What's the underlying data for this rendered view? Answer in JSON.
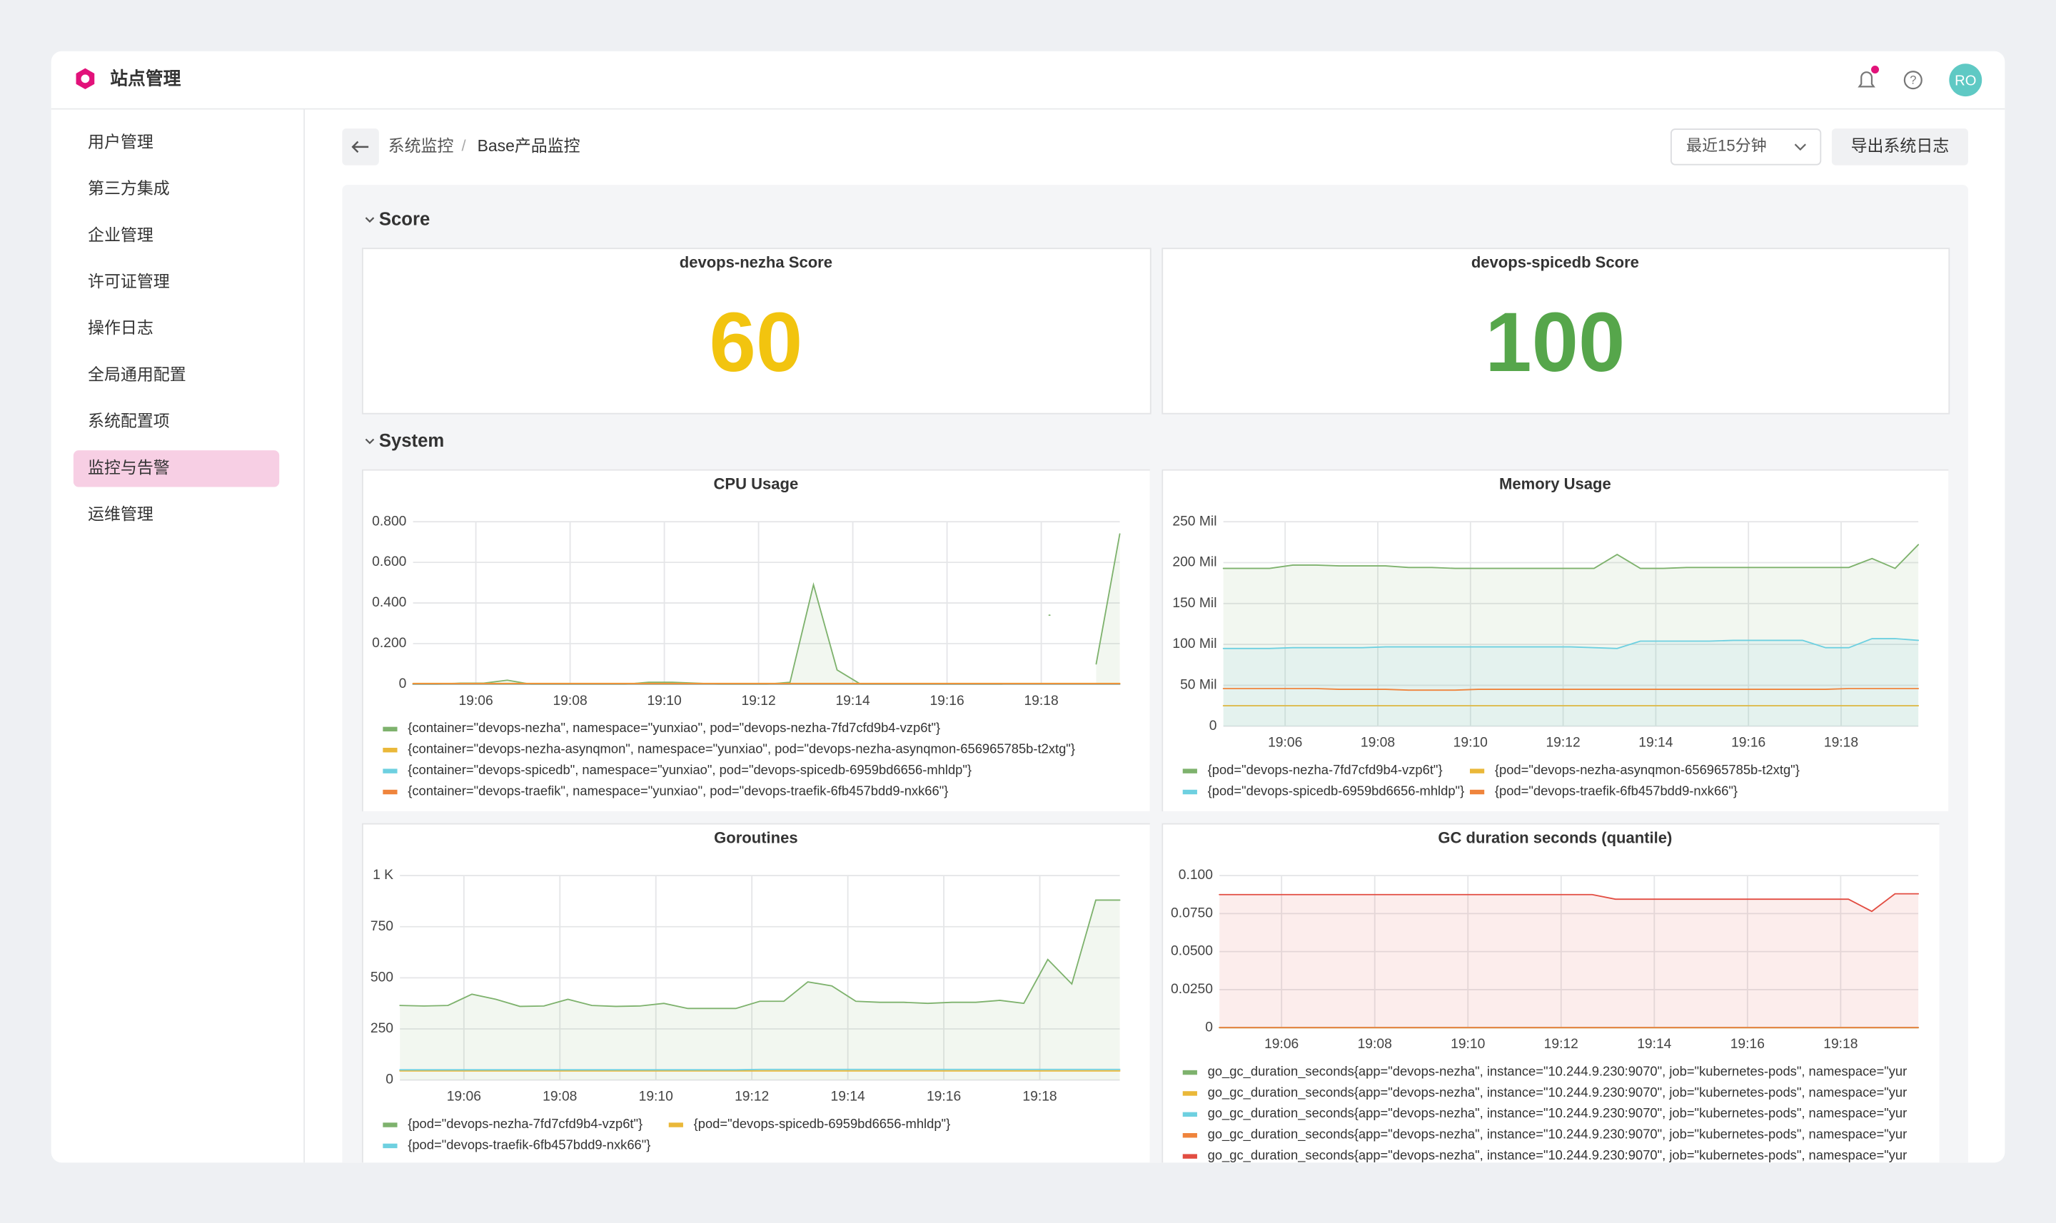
{
  "header": {
    "title": "站点管理",
    "avatar": "RO"
  },
  "sidebar": {
    "items": [
      "用户管理",
      "第三方集成",
      "企业管理",
      "许可证管理",
      "操作日志",
      "全局通用配置",
      "系统配置项",
      "监控与告警",
      "运维管理"
    ],
    "active": 7
  },
  "breadcrumb": {
    "items": [
      "系统监控",
      "Base产品监控"
    ],
    "separator": "/"
  },
  "toolbar": {
    "time_range": "最近15分钟",
    "export": "导出系统日志"
  },
  "sections": [
    "Score",
    "System"
  ],
  "scores": [
    {
      "title": "devops-nezha Score",
      "value": 60,
      "color": "#f2c40f"
    },
    {
      "title": "devops-spicedb Score",
      "value": 100,
      "color": "#56a64b"
    }
  ],
  "time_axis": {
    "x": [
      "19:04:40",
      "19:05:10",
      "19:05:40",
      "19:06:10",
      "19:06:40",
      "19:07:10",
      "19:07:40",
      "19:08:10",
      "19:08:40",
      "19:09:10",
      "19:09:40",
      "19:10:10",
      "19:10:40",
      "19:11:10",
      "19:11:40",
      "19:12:10",
      "19:12:40",
      "19:13:10",
      "19:13:40",
      "19:14:10",
      "19:14:40",
      "19:15:10",
      "19:15:40",
      "19:16:10",
      "19:16:40",
      "19:17:10",
      "19:17:40",
      "19:18:10",
      "19:18:40",
      "19:19:10",
      "19:19:40"
    ],
    "xlim": [
      "19:04:40",
      "19:19:40"
    ],
    "xticks": [
      "19:06",
      "19:08",
      "19:10",
      "19:12",
      "19:14",
      "19:16",
      "19:18"
    ]
  },
  "charts": [
    {
      "type": "line",
      "title": "CPU Usage",
      "ylim": [
        0,
        0.8
      ],
      "yticks": [
        0,
        {
          "value": 0.2,
          "label": "0.200"
        },
        {
          "value": 0.4,
          "label": "0.400"
        },
        {
          "value": 0.6,
          "label": "0.600"
        },
        {
          "value": 0.8,
          "label": "0.800"
        }
      ],
      "series": [
        {
          "name": "{container=\"devops-nezha\", namespace=\"yunxiao\", pod=\"devops-nezha-7fd7cfd9b4-vzp6t\"}",
          "color": "#7eb26d",
          "fill": true,
          "values": [
            0,
            0,
            0.005,
            0.005,
            0.02,
            0,
            0,
            0,
            0,
            0,
            0.01,
            0.01,
            0.005,
            0,
            0,
            0,
            0.01,
            0.49,
            0.07,
            0,
            0,
            0,
            0,
            0,
            0,
            0,
            null,
            0.34,
            null,
            0.1,
            0.74
          ]
        },
        {
          "name": "{container=\"devops-nezha-asynqmon\", namespace=\"yunxiao\", pod=\"devops-nezha-asynqmon-656965785b-t2xtg\"}",
          "color": "#eab839",
          "values": [
            0.004,
            0.004,
            0.004,
            0.004,
            0.004,
            0.004,
            0.004,
            0.004,
            0.004,
            0.004,
            0.004,
            0.004,
            0.004,
            0.004,
            0.004,
            0.004,
            0.004,
            0.004,
            0.004,
            0.004,
            0.004,
            0.004,
            0.004,
            0.004,
            0.004,
            0.004,
            0.004,
            0.004,
            0.004,
            0.004,
            0.004
          ]
        },
        {
          "name": "{container=\"devops-spicedb\", namespace=\"yunxiao\", pod=\"devops-spicedb-6959bd6656-mhldp\"}",
          "color": "#6ed0e0",
          "values": [
            0,
            0,
            0,
            0,
            0,
            0,
            0,
            0,
            0,
            0,
            0,
            0,
            0,
            0,
            0,
            0,
            0,
            0,
            0,
            0,
            0,
            0,
            0,
            0,
            0,
            0,
            0,
            0,
            0,
            0,
            0
          ]
        },
        {
          "name": "{container=\"devops-traefik\", namespace=\"yunxiao\", pod=\"devops-traefik-6fb457bdd9-nxk66\"}",
          "color": "#ef843c",
          "values": [
            0.002,
            0.002,
            0.002,
            0.002,
            0.002,
            0.002,
            0.002,
            0.002,
            0.002,
            0.002,
            0.002,
            0.002,
            0.002,
            0.002,
            0.002,
            0.002,
            0.002,
            0.002,
            0.002,
            0.002,
            0.002,
            0.002,
            0.002,
            0.002,
            0.002,
            0.002,
            0.002,
            0.002,
            0.002,
            0.002,
            0.002
          ]
        }
      ]
    },
    {
      "type": "line",
      "title": "Memory Usage",
      "ylim": [
        0,
        250
      ],
      "yticks": [
        0,
        {
          "value": 50,
          "label": "50 Mil"
        },
        {
          "value": 100,
          "label": "100 Mil"
        },
        {
          "value": 150,
          "label": "150 Mil"
        },
        {
          "value": 200,
          "label": "200 Mil"
        },
        {
          "value": 250,
          "label": "250 Mil"
        }
      ],
      "series": [
        {
          "name": "{pod=\"devops-nezha-7fd7cfd9b4-vzp6t\"}",
          "color": "#7eb26d",
          "fill": true,
          "values": [
            193,
            193,
            193,
            197,
            197,
            196,
            196,
            196,
            194,
            194,
            193,
            193,
            193,
            193,
            193,
            193,
            193,
            210,
            193,
            193,
            194,
            194,
            194,
            194,
            194,
            194,
            194,
            194,
            205,
            193,
            222
          ]
        },
        {
          "name": "{pod=\"devops-nezha-asynqmon-656965785b-t2xtg\"}",
          "color": "#eab839",
          "values": [
            25,
            25,
            25,
            25,
            25,
            25,
            25,
            25,
            25,
            25,
            25,
            25,
            25,
            25,
            25,
            25,
            25,
            25,
            25,
            25,
            25,
            25,
            25,
            25,
            25,
            25,
            25,
            25,
            25,
            25,
            25
          ]
        },
        {
          "name": "{pod=\"devops-spicedb-6959bd6656-mhldp\"}",
          "color": "#6ed0e0",
          "fill": true,
          "values": [
            95,
            95,
            95,
            96,
            96,
            96,
            96,
            97,
            97,
            97,
            97,
            97,
            97,
            97,
            97,
            97,
            96,
            95,
            104,
            104,
            104,
            104,
            105,
            105,
            105,
            105,
            96,
            96,
            107,
            107,
            105
          ]
        },
        {
          "name": "{pod=\"devops-traefik-6fb457bdd9-nxk66\"}",
          "color": "#ef843c",
          "values": [
            46,
            46,
            46,
            46,
            46,
            45,
            45,
            45,
            44,
            44,
            44,
            45,
            45,
            45,
            45,
            45,
            45,
            45,
            45,
            45,
            45,
            45,
            45,
            45,
            45,
            45,
            45,
            46,
            46,
            46,
            46
          ]
        }
      ]
    },
    {
      "type": "line",
      "title": "Goroutines",
      "ylim": [
        0,
        1000
      ],
      "yticks": [
        0,
        250,
        500,
        750,
        {
          "value": 1000,
          "label": "1 K"
        }
      ],
      "series": [
        {
          "name": "{pod=\"devops-nezha-7fd7cfd9b4-vzp6t\"}",
          "color": "#7eb26d",
          "fill": true,
          "values": [
            365,
            362,
            365,
            420,
            395,
            360,
            362,
            395,
            365,
            360,
            362,
            375,
            350,
            350,
            350,
            385,
            385,
            480,
            460,
            385,
            380,
            380,
            375,
            380,
            380,
            390,
            375,
            590,
            470,
            880,
            880
          ]
        },
        {
          "name": "{pod=\"devops-spicedb-6959bd6656-mhldp\"}",
          "color": "#eab839",
          "values": [
            45,
            45,
            45,
            45,
            45,
            45,
            45,
            45,
            45,
            45,
            45,
            45,
            45,
            45,
            45,
            45,
            45,
            45,
            45,
            45,
            45,
            45,
            45,
            45,
            45,
            45,
            45,
            45,
            45,
            45,
            45
          ]
        },
        {
          "name": "{pod=\"devops-traefik-6fb457bdd9-nxk66\"}",
          "color": "#6ed0e0",
          "values": [
            50,
            50,
            50,
            50,
            50,
            50,
            50,
            50,
            50,
            50,
            50,
            50,
            50,
            50,
            50,
            52,
            52,
            52,
            52,
            52,
            52,
            52,
            52,
            52,
            52,
            52,
            52,
            52,
            52,
            52,
            52
          ]
        }
      ]
    },
    {
      "type": "line",
      "title": "GC duration seconds (quantile)",
      "ylim": [
        0,
        0.1
      ],
      "yticks": [
        0,
        {
          "value": 0.025,
          "label": "0.0250"
        },
        {
          "value": 0.05,
          "label": "0.0500"
        },
        {
          "value": 0.075,
          "label": "0.0750"
        },
        {
          "value": 0.1,
          "label": "0.100"
        }
      ],
      "series": [
        {
          "name": "go_gc_duration_seconds{app=\"devops-nezha\", instance=\"10.244.9.230:9070\", job=\"kubernetes-pods\", namespace=\"yur",
          "color": "#7eb26d",
          "values": [
            0,
            0,
            0,
            0,
            0,
            0,
            0,
            0,
            0,
            0,
            0,
            0,
            0,
            0,
            0,
            0,
            0,
            0,
            0,
            0,
            0,
            0,
            0,
            0,
            0,
            0,
            0,
            0,
            0,
            0,
            0
          ]
        },
        {
          "name": "go_gc_duration_seconds{app=\"devops-nezha\", instance=\"10.244.9.230:9070\", job=\"kubernetes-pods\", namespace=\"yur",
          "color": "#eab839",
          "values": [
            0,
            0,
            0,
            0,
            0,
            0,
            0,
            0,
            0,
            0,
            0,
            0,
            0,
            0,
            0,
            0,
            0,
            0,
            0,
            0,
            0,
            0,
            0,
            0,
            0,
            0,
            0,
            0,
            0,
            0,
            0
          ]
        },
        {
          "name": "go_gc_duration_seconds{app=\"devops-nezha\", instance=\"10.244.9.230:9070\", job=\"kubernetes-pods\", namespace=\"yur",
          "color": "#6ed0e0",
          "values": [
            0,
            0,
            0,
            0,
            0,
            0,
            0,
            0,
            0,
            0,
            0,
            0,
            0,
            0,
            0,
            0,
            0,
            0,
            0,
            0,
            0,
            0,
            0,
            0,
            0,
            0,
            0,
            0,
            0,
            0,
            0
          ]
        },
        {
          "name": "go_gc_duration_seconds{app=\"devops-nezha\", instance=\"10.244.9.230:9070\", job=\"kubernetes-pods\", namespace=\"yur",
          "color": "#ef843c",
          "values": [
            0,
            0,
            0,
            0,
            0,
            0,
            0,
            0,
            0,
            0,
            0,
            0,
            0,
            0,
            0,
            0,
            0,
            0,
            0,
            0,
            0,
            0,
            0,
            0,
            0,
            0,
            0,
            0,
            0,
            0,
            0
          ]
        },
        {
          "name": "go_gc_duration_seconds{app=\"devops-nezha\", instance=\"10.244.9.230:9070\", job=\"kubernetes-pods\", namespace=\"yur",
          "color": "#e24d42",
          "fill": true,
          "values": [
            0.0875,
            0.0875,
            0.0875,
            0.0875,
            0.0875,
            0.0875,
            0.0875,
            0.0875,
            0.0875,
            0.0875,
            0.0875,
            0.0875,
            0.0875,
            0.0875,
            0.0875,
            0.0875,
            0.0875,
            0.0845,
            0.0845,
            0.0845,
            0.0845,
            0.0845,
            0.0845,
            0.0845,
            0.0845,
            0.0845,
            0.0845,
            0.0845,
            0.0765,
            0.088,
            0.088
          ]
        }
      ]
    }
  ]
}
